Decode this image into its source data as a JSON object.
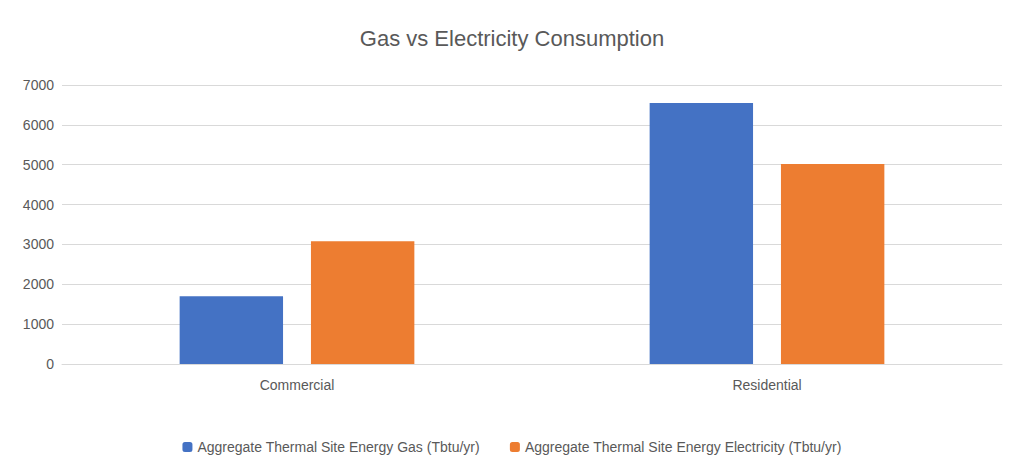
{
  "chart_data": {
    "type": "bar",
    "title": "Gas vs Electricity Consumption",
    "categories": [
      "Commercial",
      "Residential"
    ],
    "series": [
      {
        "name": "Aggregate Thermal Site Energy Gas (Tbtu/yr)",
        "color": "#4472c4",
        "values": [
          1700,
          6550
        ]
      },
      {
        "name": "Aggregate Thermal Site Energy Electricity (Tbtu/yr)",
        "color": "#ed7d31",
        "values": [
          3080,
          5020
        ]
      }
    ],
    "ylim": [
      0,
      7000
    ],
    "yticks": [
      0,
      1000,
      2000,
      3000,
      4000,
      5000,
      6000,
      7000
    ],
    "grid": true,
    "legend": "bottom"
  }
}
